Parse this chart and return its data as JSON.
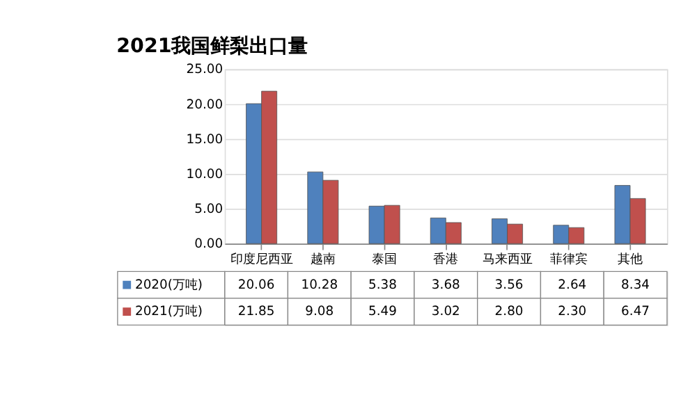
{
  "chart_data": {
    "type": "bar",
    "title": "2021我国鲜梨出口量",
    "categories": [
      "印度尼西亚",
      "越南",
      "泰国",
      "香港",
      "马来西亚",
      "菲律宾",
      "其他"
    ],
    "series": [
      {
        "name": "2020(万吨)",
        "color": "#4f81bd",
        "values": [
          20.06,
          10.28,
          5.38,
          3.68,
          3.56,
          2.64,
          8.34
        ],
        "value_labels": [
          "20.06",
          "10.28",
          "5.38",
          "3.68",
          "3.56",
          "2.64",
          "8.34"
        ]
      },
      {
        "name": "2021(万吨)",
        "color": "#c0504d",
        "values": [
          21.85,
          9.08,
          5.49,
          3.02,
          2.8,
          2.3,
          6.47
        ],
        "value_labels": [
          "21.85",
          "9.08",
          "5.49",
          "3.02",
          "2.80",
          "2.30",
          "6.47"
        ]
      }
    ],
    "ylim": [
      0,
      25
    ],
    "yticks": [
      {
        "value": 0,
        "label": "0.00"
      },
      {
        "value": 5,
        "label": "5.00"
      },
      {
        "value": 10,
        "label": "10.00"
      },
      {
        "value": 15,
        "label": "15.00"
      },
      {
        "value": 20,
        "label": "20.00"
      },
      {
        "value": 25,
        "label": "25.00"
      }
    ],
    "grid": "y",
    "legend": "bottom"
  }
}
